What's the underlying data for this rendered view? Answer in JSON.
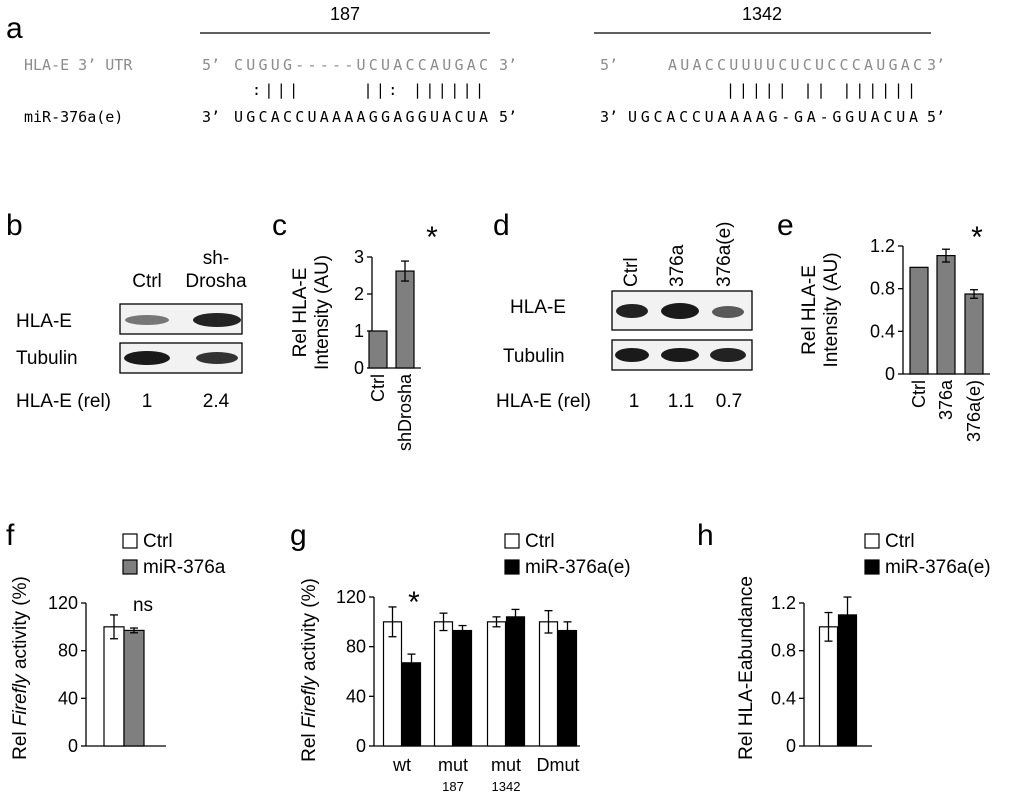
{
  "panel_letters": [
    "a",
    "b",
    "c",
    "d",
    "e",
    "f",
    "g",
    "h"
  ],
  "colors": {
    "gray_fill": "#7f7f7f",
    "black_fill": "#000000",
    "white_fill": "#ffffff",
    "utr_text": "#8c8c8c",
    "band_bg": "#f0f0f0"
  },
  "panel_a": {
    "site1_label": "187",
    "site2_label": "1342",
    "utr_name": "HLA-E 3’ UTR",
    "mir_name": "miR-376a(e)",
    "five_prime": "5’",
    "three_prime": "3’",
    "site1_utr": "CUGUG-----UCUACCAUGAC",
    "site1_pairs": ":|||     ||: ||||||",
    "site1_mir": "UGCACCUAAAAGGAGGUACUA",
    "site2_utr": "AUACCUUUUCUCUCCCAUGAC",
    "site2_pairs": "||||| || ||||||",
    "site2_mir": "UGCACCUAAAAG-GA-GGUACUA"
  },
  "panel_b": {
    "lane_labels": [
      "Ctrl",
      "sh-",
      "Drosha"
    ],
    "row_labels": [
      "HLA-E",
      "Tubulin"
    ],
    "quant_label": "HLA-E (rel)",
    "quant_values": [
      "1",
      "2.4"
    ]
  },
  "panel_d": {
    "lane_labels": [
      "Ctrl",
      "376a",
      "376a(e)"
    ],
    "row_labels": [
      "HLA-E",
      "Tubulin"
    ],
    "quant_label": "HLA-E (rel)",
    "quant_values": [
      "1",
      "1.1",
      "0.7"
    ]
  },
  "chart_data": [
    {
      "panel": "c",
      "type": "bar",
      "categories": [
        "Ctrl",
        "shDrosha"
      ],
      "series": [
        {
          "values": [
            1.0,
            2.62
          ],
          "errors": [
            0,
            0.27
          ]
        }
      ],
      "ylabel_line1": "Rel HLA-E",
      "ylabel_line2": "Intensity (AU)",
      "ylim": [
        0,
        3
      ],
      "yticks": [
        "0",
        "1",
        "2",
        "3"
      ],
      "yticks_values": [
        0,
        1,
        2,
        3
      ],
      "annotation": "*",
      "fill": "gray"
    },
    {
      "panel": "e",
      "type": "bar",
      "categories": [
        "Ctrl",
        "376a",
        "376a(e)"
      ],
      "series": [
        {
          "values": [
            1.0,
            1.11,
            0.75
          ],
          "errors": [
            0,
            0.06,
            0.04
          ]
        }
      ],
      "ylabel_line1": "Rel HLA-E",
      "ylabel_line2": "Intensity (AU)",
      "ylim": [
        0,
        1.2
      ],
      "yticks": [
        "0",
        "0.4",
        "0.8",
        "1.2"
      ],
      "yticks_values": [
        0,
        0.4,
        0.8,
        1.2
      ],
      "annotation": "*",
      "fill": "gray"
    },
    {
      "panel": "f",
      "type": "bar",
      "categories": [
        ""
      ],
      "series": [
        {
          "name": "Ctrl",
          "values": [
            100
          ],
          "errors": [
            10
          ],
          "fill": "white"
        },
        {
          "name": "miR-376a",
          "values": [
            97
          ],
          "errors": [
            2
          ],
          "fill": "gray"
        }
      ],
      "ylabel_pre": "Rel ",
      "ylabel_italic": "Firefly",
      "ylabel_post": " activity (%)",
      "ylim": [
        0,
        120
      ],
      "yticks": [
        "0",
        "40",
        "80",
        "120"
      ],
      "yticks_values": [
        0,
        40,
        80,
        120
      ],
      "annotation": "ns"
    },
    {
      "panel": "g",
      "type": "bar",
      "categories": [
        "wt",
        "mut",
        "mut",
        "Dmut"
      ],
      "category_sublabels": [
        "",
        "187",
        "1342",
        ""
      ],
      "series": [
        {
          "name": "Ctrl",
          "values": [
            100,
            100,
            100,
            100
          ],
          "errors": [
            12,
            7,
            4,
            9
          ],
          "fill": "white"
        },
        {
          "name": "miR-376a(e)",
          "values": [
            67,
            93,
            104,
            93
          ],
          "errors": [
            7,
            4,
            6,
            7
          ],
          "fill": "black"
        }
      ],
      "ylabel_pre": "Rel ",
      "ylabel_italic": "Firefly",
      "ylabel_post": " activity (%)",
      "ylim": [
        0,
        120
      ],
      "yticks": [
        "0",
        "40",
        "80",
        "120"
      ],
      "yticks_values": [
        0,
        40,
        80,
        120
      ],
      "annotation": "*"
    },
    {
      "panel": "h",
      "type": "bar",
      "categories": [
        ""
      ],
      "series": [
        {
          "name": "Ctrl",
          "values": [
            1.0
          ],
          "errors": [
            0.12
          ],
          "fill": "white"
        },
        {
          "name": "miR-376a(e)",
          "values": [
            1.1
          ],
          "errors": [
            0.15
          ],
          "fill": "black"
        }
      ],
      "ylabel": "Rel HLA-Eabundance",
      "ylim": [
        0,
        1.2
      ],
      "yticks": [
        "0",
        "0.4",
        "0.8",
        "1.2"
      ],
      "yticks_values": [
        0,
        0.4,
        0.8,
        1.2
      ]
    }
  ]
}
